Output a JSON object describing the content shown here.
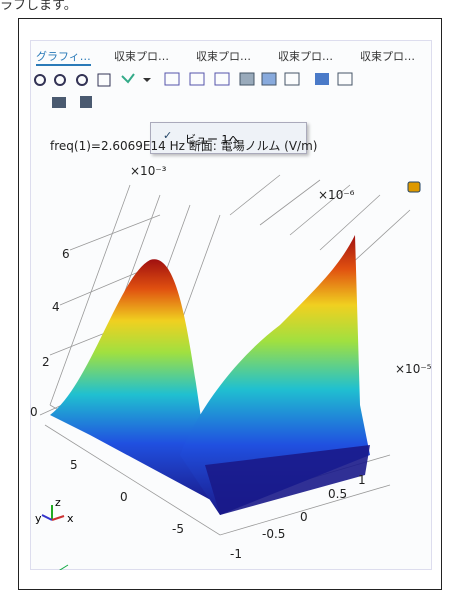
{
  "header": {
    "caption": "ラフします。"
  },
  "tabs": [
    "グラフィ…",
    "収束プロ…",
    "収束プロ…",
    "収束プロ…",
    "収束プロ…"
  ],
  "menu": {
    "item": "ビュー 1へ"
  },
  "plot": {
    "title": "freq(1)=2.6069E14 Hz  断面: 電場ノルム (V/m)",
    "z_scale": "×10⁻³",
    "x_scale": "×10⁻⁶",
    "y_scale": "×10⁻⁵",
    "z_ticks": [
      "6",
      "4",
      "2",
      "0"
    ],
    "x_ticks": [
      "5",
      "0",
      "-5"
    ],
    "y_ticks": [
      "1",
      "0.5",
      "0",
      "-0.5",
      "-1"
    ],
    "triad": {
      "z": "z",
      "y": "y",
      "x": "x"
    }
  }
}
